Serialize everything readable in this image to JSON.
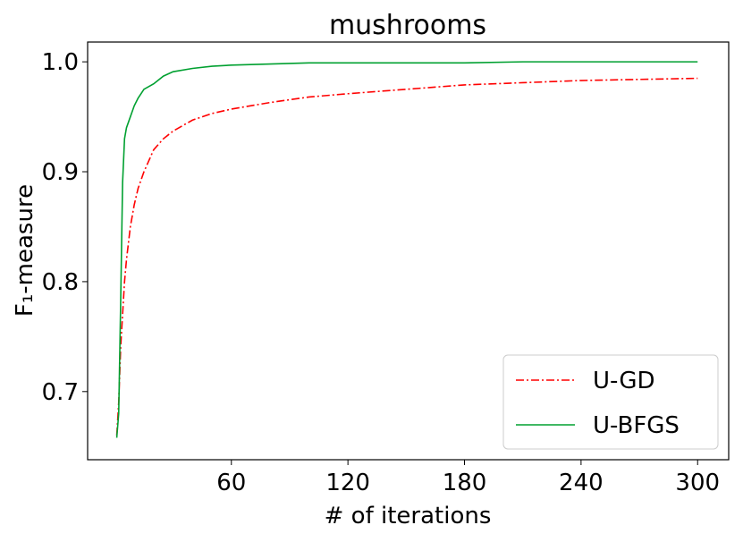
{
  "chart_data": {
    "type": "line",
    "title": "mushrooms",
    "xlabel": "# of iterations",
    "ylabel": "F₁-measure",
    "x": [
      1,
      2,
      3,
      4,
      5,
      6,
      8,
      10,
      12,
      15,
      20,
      25,
      30,
      40,
      50,
      60,
      80,
      100,
      120,
      150,
      180,
      210,
      240,
      270,
      300
    ],
    "series": [
      {
        "name": "U-GD",
        "color": "#ff0000",
        "dash": "dashdot",
        "values": [
          0.66,
          0.69,
          0.74,
          0.77,
          0.8,
          0.82,
          0.85,
          0.87,
          0.885,
          0.9,
          0.92,
          0.93,
          0.937,
          0.947,
          0.953,
          0.957,
          0.963,
          0.968,
          0.971,
          0.975,
          0.979,
          0.981,
          0.983,
          0.984,
          0.985
        ]
      },
      {
        "name": "U-BFGS",
        "color": "#00a030",
        "dash": "solid",
        "values": [
          0.658,
          0.68,
          0.78,
          0.89,
          0.93,
          0.94,
          0.95,
          0.96,
          0.967,
          0.975,
          0.98,
          0.987,
          0.991,
          0.994,
          0.996,
          0.997,
          0.998,
          0.999,
          0.999,
          0.999,
          0.999,
          1.0,
          1.0,
          1.0,
          1.0
        ]
      }
    ],
    "xlim": [
      -14,
      316
    ],
    "ylim": [
      0.638,
      1.018
    ],
    "xticks": [
      60,
      120,
      180,
      240,
      300
    ],
    "yticks": [
      {
        "value": 0.7,
        "label": "0.7"
      },
      {
        "value": 0.8,
        "label": "0.8"
      },
      {
        "value": 0.9,
        "label": "0.9"
      },
      {
        "value": 1.0,
        "label": "1.0"
      }
    ],
    "legend": "lower right"
  }
}
